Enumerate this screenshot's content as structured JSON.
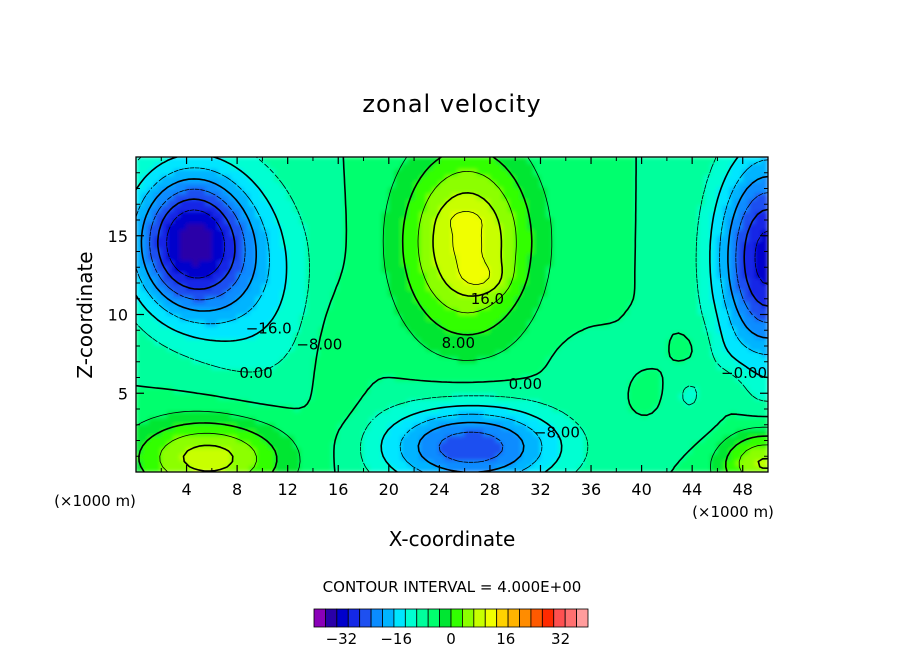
{
  "chart_data": {
    "type": "heatmap",
    "subtype": "filled-contour",
    "title": "zonal velocity",
    "xlabel": "X-coordinate",
    "ylabel": "Z-coordinate",
    "x_unit_left": "(×1000 m)",
    "x_unit_right": "(×1000 m)",
    "xlim": [
      0,
      50
    ],
    "ylim": [
      0,
      20
    ],
    "xticks": [
      4,
      8,
      12,
      16,
      20,
      24,
      28,
      32,
      36,
      40,
      44,
      48
    ],
    "yticks": [
      5,
      10,
      15
    ],
    "contour_interval_label": "CONTOUR INTERVAL = 4.000E+00",
    "colorbar": {
      "min": -40,
      "max": 40,
      "step": 4,
      "tick_values": [
        -32,
        -16,
        0,
        16,
        32
      ],
      "tick_labels": [
        "−32",
        "−16",
        "0",
        "16",
        "32"
      ],
      "colors": [
        "#8a00b8",
        "#2a00a8",
        "#0000cc",
        "#1428e6",
        "#1e50f0",
        "#0a8cff",
        "#00b4ff",
        "#00e6ff",
        "#00ffd2",
        "#00ff9c",
        "#00ff6e",
        "#00e632",
        "#32ff00",
        "#8cff00",
        "#c8ff00",
        "#f0ff00",
        "#ffd200",
        "#ffb400",
        "#ff8c00",
        "#ff5a00",
        "#ff2a00",
        "#ff5050",
        "#ff7070",
        "#ff9c9c"
      ]
    },
    "contour_labels": [
      {
        "text": "−16.0",
        "x": 10.5,
        "z": 9.1
      },
      {
        "text": "−8.00",
        "x": 14.5,
        "z": 8.1
      },
      {
        "text": "0.00",
        "x": 9.5,
        "z": 6.3
      },
      {
        "text": "16.0",
        "x": 27.8,
        "z": 11.0
      },
      {
        "text": "8.00",
        "x": 25.5,
        "z": 8.2
      },
      {
        "text": "0.00",
        "x": 30.8,
        "z": 5.6
      },
      {
        "text": "−8.00",
        "x": 33.3,
        "z": 2.5
      },
      {
        "text": "−0.00",
        "x": 48.1,
        "z": 6.3
      }
    ],
    "field_features": [
      {
        "kind": "min",
        "x": 4.3,
        "z": 14.6,
        "value": -28
      },
      {
        "kind": "max",
        "x": 27.0,
        "z": 16.0,
        "value": 22
      },
      {
        "kind": "max",
        "x": 27.3,
        "z": 12.2,
        "value": 24
      },
      {
        "kind": "max",
        "x": 5.7,
        "z": 1.6,
        "value": 16
      },
      {
        "kind": "min",
        "x": 26.0,
        "z": 1.5,
        "value": -22
      },
      {
        "kind": "min",
        "x": 49.6,
        "z": 13.6,
        "value": -24
      },
      {
        "kind": "max",
        "x": 49.2,
        "z": 1.3,
        "value": 16
      }
    ]
  }
}
